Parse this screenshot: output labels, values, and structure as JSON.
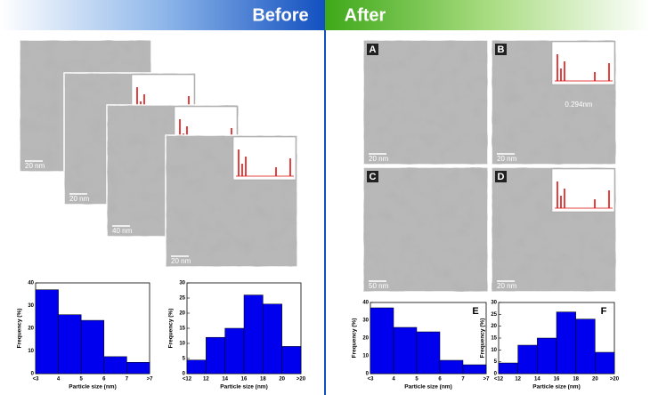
{
  "header": {
    "before": "Before",
    "after": "After"
  },
  "before": {
    "images": [
      {
        "scale": "20 nm"
      },
      {
        "scale": "20 nm"
      },
      {
        "scale": "40 nm"
      },
      {
        "scale": "20 nm"
      }
    ]
  },
  "after": {
    "images": [
      {
        "label": "A",
        "scale": "20 nm"
      },
      {
        "label": "B",
        "scale": "20 nm"
      },
      {
        "label": "C",
        "scale": "50 nm"
      },
      {
        "label": "D",
        "scale": "20 nm"
      }
    ],
    "lattice": "0.294nm"
  },
  "chart_data": [
    {
      "type": "histogram",
      "bins": [
        "<3",
        "4",
        "5",
        "6",
        "7",
        ">7"
      ],
      "values": [
        37,
        26,
        23.5,
        7.5,
        5
      ],
      "color": "#0000ee",
      "ylim": [
        0,
        40
      ],
      "yticks": [
        0,
        10,
        20,
        30,
        40
      ],
      "x_label": "Particle size (nm)",
      "y_label": "Frequency (%)"
    },
    {
      "type": "histogram",
      "bins": [
        "<12",
        "12",
        "14",
        "16",
        "18",
        "20",
        ">20"
      ],
      "values": [
        4.5,
        12,
        15,
        26,
        23,
        9
      ],
      "color": "#0000ee",
      "ylim": [
        0,
        30
      ],
      "yticks": [
        0,
        5,
        10,
        15,
        20,
        25,
        30
      ],
      "x_label": "Particle size (nm)",
      "y_label": "Frequency (%)"
    },
    {
      "type": "histogram",
      "label": "E",
      "bins": [
        "<3",
        "4",
        "5",
        "6",
        "7",
        ">7"
      ],
      "values": [
        37,
        26,
        23.5,
        7.5,
        5
      ],
      "color": "#0000ee",
      "ylim": [
        0,
        40
      ],
      "yticks": [
        0,
        10,
        20,
        30,
        40
      ],
      "x_label": "Particle size (nm)",
      "y_label": "Frequency (%)"
    },
    {
      "type": "histogram",
      "label": "F",
      "bins": [
        "<12",
        "12",
        "14",
        "16",
        "18",
        "20",
        ">20"
      ],
      "values": [
        4.5,
        12,
        15,
        26,
        23,
        9
      ],
      "color": "#0000ee",
      "ylim": [
        0,
        30
      ],
      "yticks": [
        0,
        5,
        10,
        15,
        20,
        25,
        30
      ],
      "x_label": "Particle size (nm)",
      "y_label": "Frequency (%)"
    }
  ]
}
